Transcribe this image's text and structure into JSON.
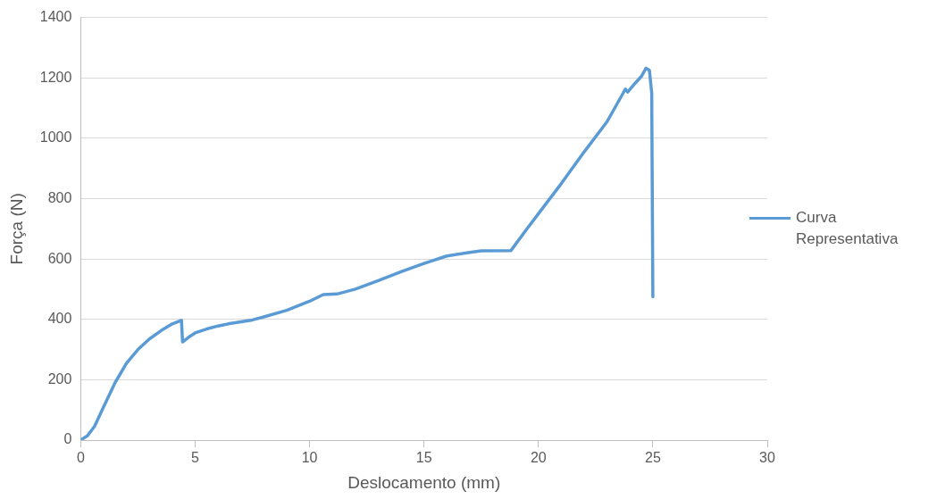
{
  "chart_data": {
    "type": "line",
    "xlabel": "Deslocamento (mm)",
    "ylabel": "Força (N)",
    "xlim": [
      0,
      30
    ],
    "xticks": [
      0,
      5,
      10,
      15,
      20,
      25,
      30
    ],
    "ylim": [
      0,
      1400
    ],
    "yticks": [
      0,
      200,
      400,
      600,
      800,
      1000,
      1200,
      1400
    ],
    "grid": "y",
    "legend": "right",
    "marker": "none",
    "line_style": "solid",
    "series": [
      {
        "name": "Curva Representativa",
        "color": "#5b9bd5",
        "x": [
          0,
          0.3,
          0.6,
          1,
          1.5,
          2,
          2.5,
          3,
          3.5,
          4,
          4.4,
          4.45,
          4.7,
          5,
          5.5,
          6,
          6.5,
          7,
          7.5,
          8,
          9,
          10,
          10.6,
          11.2,
          12,
          13,
          14,
          15,
          16,
          17,
          17.5,
          18.8,
          19.5,
          20,
          21,
          22,
          23,
          23.8,
          23.9,
          24.2,
          24.5,
          24.7,
          24.85,
          24.95,
          25.0
        ],
        "values": [
          0,
          15,
          45,
          110,
          190,
          255,
          300,
          335,
          362,
          385,
          397,
          325,
          340,
          355,
          368,
          378,
          386,
          392,
          398,
          408,
          430,
          460,
          482,
          484,
          500,
          528,
          558,
          585,
          610,
          622,
          627,
          628,
          700,
          750,
          850,
          955,
          1055,
          1163,
          1153,
          1180,
          1205,
          1232,
          1225,
          1150,
          475
        ]
      }
    ]
  }
}
